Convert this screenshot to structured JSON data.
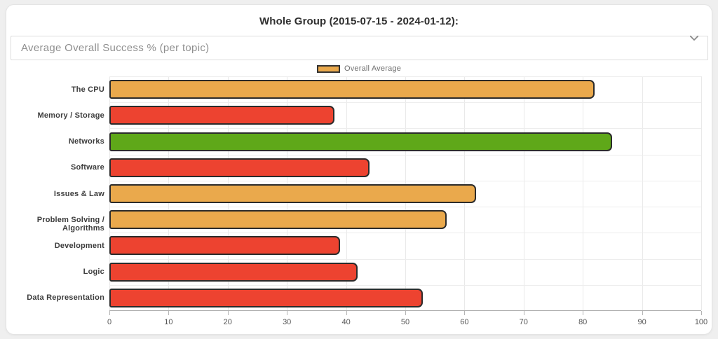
{
  "header": {
    "title": "Whole Group (2015-07-15 - 2024-01-12):"
  },
  "accordion": {
    "label": "Average Overall Success % (per topic)"
  },
  "legend": {
    "label": "Overall Average",
    "swatch_color": "#EAA94C",
    "swatch_border_color": "#333333"
  },
  "chart_data": {
    "type": "bar",
    "orientation": "horizontal",
    "title": "Average Overall Success % (per topic)",
    "categories": [
      "The CPU",
      "Memory / Storage",
      "Networks",
      "Software",
      "Issues & Law",
      "Problem Solving / Algorithms",
      "Development",
      "Logic",
      "Data Representation"
    ],
    "values": [
      82,
      38,
      85,
      44,
      62,
      57,
      39,
      42,
      53
    ],
    "bar_colors": [
      "#EAA94C",
      "#ED4330",
      "#5FA819",
      "#ED4330",
      "#EAA94C",
      "#EAA94C",
      "#ED4330",
      "#ED4330",
      "#ED4330"
    ],
    "bar_border_color": "#2B2B2B",
    "legend_entries": [
      {
        "label": "Overall Average",
        "color": "#EAA94C"
      }
    ],
    "legend_position": "top-center",
    "xlabel": "",
    "ylabel": "",
    "xlim": [
      0,
      100
    ],
    "x_tick_step": 10,
    "x_tick_labels": [
      "0",
      "10",
      "20",
      "30",
      "40",
      "50",
      "60",
      "70",
      "80",
      "90",
      "100"
    ],
    "grid": true
  }
}
